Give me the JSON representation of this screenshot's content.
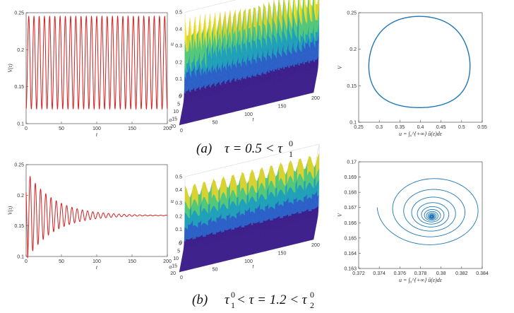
{
  "captions": {
    "a": {
      "tag": "(a)",
      "text": "τ = 0.5 < τ",
      "sub": "1",
      "sup": "0"
    },
    "b": {
      "tag": "(b)",
      "pre": "τ",
      "pre_sub": "1",
      "pre_sup": "0",
      "text": " < τ = 1.2 < τ",
      "sub": "2",
      "sup": "0"
    }
  },
  "chart_data": [
    {
      "id": "a-time",
      "type": "line",
      "xlabel": "t",
      "ylabel": "V(t)",
      "xlim": [
        0,
        200
      ],
      "ylim": [
        0.1,
        0.25
      ],
      "xticks": [
        "0",
        "50",
        "100",
        "150",
        "200"
      ],
      "yticks": [
        "0.1",
        "0.15",
        "0.2",
        "0.25"
      ],
      "series": [
        {
          "x_start": 0,
          "x_end": 200,
          "min": 0.12,
          "max": 0.245,
          "periods": 27,
          "color": "#d62020"
        }
      ]
    },
    {
      "id": "a-surface",
      "type": "area",
      "zlabel": "u",
      "xlabel": "t",
      "ylabel": "a",
      "zlim": [
        0,
        0.5
      ],
      "tlim": [
        0,
        200
      ],
      "alim": [
        0,
        20
      ],
      "zticks": [
        "0",
        "0.1",
        "0.2",
        "0.3",
        "0.4",
        "0.5"
      ],
      "tticks": [
        "0",
        "50",
        "100",
        "150",
        "200"
      ],
      "aticks": [
        "0",
        "5",
        "10",
        "15",
        "20"
      ],
      "colormap": [
        "#3b1d8a",
        "#2a5fc7",
        "#1fa0b8",
        "#52c77a",
        "#d8d230",
        "#f2e52a"
      ],
      "peak_min": 0.32,
      "peak_max": 0.46,
      "ridges": 27
    },
    {
      "id": "a-phase",
      "type": "line",
      "xlabel": "u = ∫₀^{+∞} ū(ε)dε",
      "ylabel": "V",
      "xlim": [
        0.25,
        0.55
      ],
      "ylim": [
        0.1,
        0.25
      ],
      "xticks": [
        "0.25",
        "0.3",
        "0.35",
        "0.4",
        "0.45",
        "0.5",
        "0.55"
      ],
      "yticks": [
        "0.1",
        "0.15",
        "0.2",
        "0.25"
      ],
      "series": [
        {
          "shape": "limit-cycle",
          "u_range": [
            0.275,
            0.52
          ],
          "V_range": [
            0.12,
            0.245
          ],
          "color": "#1f77b4"
        }
      ]
    },
    {
      "id": "b-time",
      "type": "line",
      "xlabel": "t",
      "ylabel": "V(t)",
      "xlim": [
        0,
        200
      ],
      "ylim": [
        0.1,
        0.25
      ],
      "xticks": [
        "0",
        "50",
        "100",
        "150",
        "200"
      ],
      "yticks": [
        "0.1",
        "0.15",
        "0.2",
        "0.25"
      ],
      "series": [
        {
          "equilibrium": 0.167,
          "amp0": 0.07,
          "peak1": 0.238,
          "trough1": 0.108,
          "decay_time": 38,
          "period": 7.4,
          "color": "#d62020"
        }
      ]
    },
    {
      "id": "b-surface",
      "type": "area",
      "zlabel": "u",
      "xlabel": "t",
      "ylabel": "a",
      "zlim": [
        0,
        0.5
      ],
      "tlim": [
        0,
        200
      ],
      "alim": [
        0,
        20
      ],
      "zticks": [
        "0",
        "0.1",
        "0.2",
        "0.3",
        "0.4",
        "0.5"
      ],
      "tticks": [
        "0",
        "50",
        "100",
        "150",
        "200"
      ],
      "aticks": [
        "0",
        "5",
        "10",
        "15",
        "20"
      ],
      "colormap": [
        "#3b1d8a",
        "#2a5fc7",
        "#1fa0b8",
        "#52c77a",
        "#d8d230",
        "#f2e52a"
      ],
      "peak_min": 0.33,
      "peak_max": 0.43,
      "ridges": 14
    },
    {
      "id": "b-phase",
      "type": "line",
      "xlabel": "u = ∫₀^{+∞} ū(ε)dε",
      "ylabel": "V",
      "xlim": [
        0.372,
        0.384
      ],
      "ylim": [
        0.163,
        0.17
      ],
      "xticks": [
        "0.372",
        "0.374",
        "0.376",
        "0.378",
        "0.38",
        "0.382",
        "0.384"
      ],
      "yticks": [
        "0.163",
        "0.164",
        "0.165",
        "0.166",
        "0.167",
        "0.168",
        "0.169",
        "0.17"
      ],
      "series": [
        {
          "shape": "spiral",
          "center": [
            0.3791,
            0.1664
          ],
          "start": [
            0.3738,
            0.167
          ],
          "color": "#1f77b4"
        }
      ]
    }
  ]
}
